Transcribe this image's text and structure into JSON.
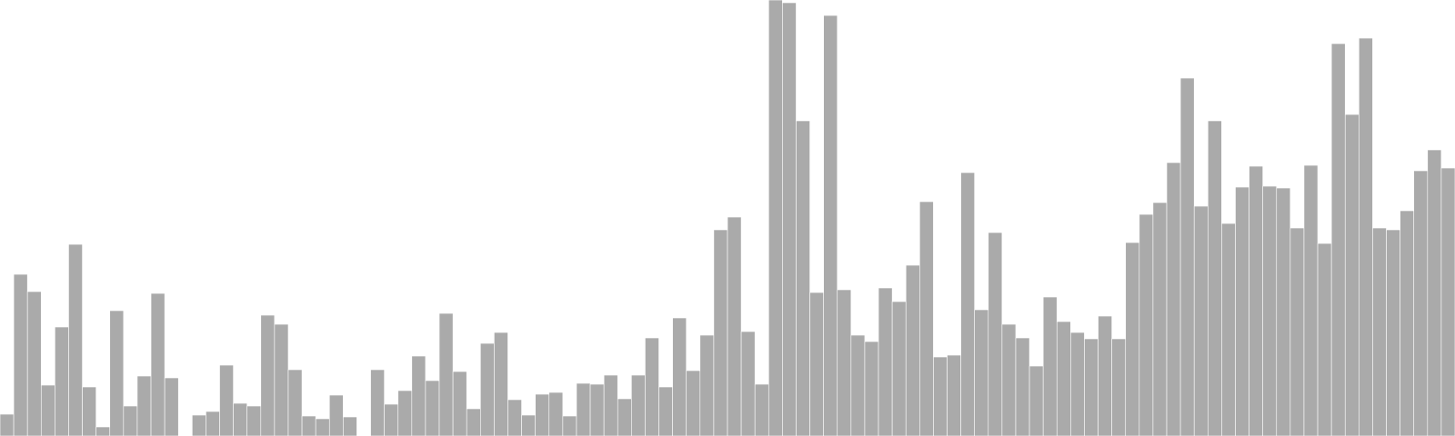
{
  "chart_data": {
    "type": "bar",
    "title": "",
    "xlabel": "",
    "ylabel": "",
    "grid": false,
    "legend": "none",
    "ylim": [
      0,
      480
    ],
    "bar_color": "#aaaaaa",
    "values": [
      24,
      178,
      159,
      56,
      120,
      211,
      54,
      10,
      138,
      33,
      66,
      157,
      64,
      0,
      23,
      27,
      78,
      36,
      33,
      133,
      123,
      73,
      22,
      19,
      45,
      21,
      0,
      73,
      35,
      50,
      88,
      61,
      135,
      71,
      30,
      102,
      114,
      40,
      23,
      46,
      48,
      22,
      58,
      57,
      67,
      41,
      67,
      108,
      54,
      130,
      72,
      111,
      227,
      241,
      115,
      57,
      480,
      477,
      347,
      158,
      463,
      161,
      111,
      104,
      163,
      148,
      188,
      258,
      87,
      89,
      290,
      139,
      224,
      123,
      108,
      77,
      153,
      126,
      114,
      107,
      132,
      107,
      213,
      244,
      257,
      301,
      394,
      253,
      347,
      234,
      274,
      297,
      275,
      273,
      229,
      298,
      212,
      432,
      354,
      438,
      229,
      227,
      248,
      292,
      315,
      295
    ]
  }
}
